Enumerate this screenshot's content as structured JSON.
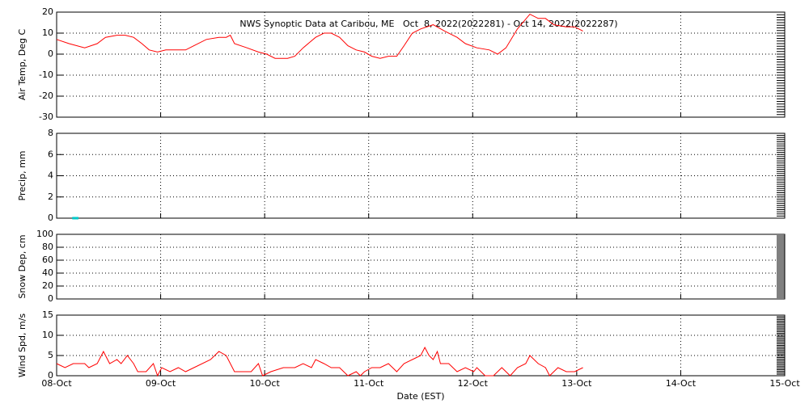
{
  "chart_data": [
    {
      "type": "line",
      "title": "NWS Synoptic Data at Caribou, ME   Oct  8, 2022(2022281) - Oct 14, 2022(2022287)",
      "y_label": "Air Temp, Deg C",
      "xlim": [
        0,
        7
      ],
      "xticks": [
        0,
        1,
        2,
        3,
        4,
        5,
        6,
        7
      ],
      "ylim": [
        -30,
        20
      ],
      "yticks": [
        -30,
        -20,
        -10,
        0,
        10,
        20
      ],
      "grid": true,
      "series": [
        {
          "color": "#ff0000",
          "x": [
            0,
            0.12,
            0.27,
            0.39,
            0.47,
            0.58,
            0.66,
            0.74,
            0.82,
            0.89,
            0.97,
            1.05,
            1.13,
            1.24,
            1.32,
            1.44,
            1.56,
            1.63,
            1.67,
            1.71,
            1.83,
            1.94,
            2.02,
            2.1,
            2.22,
            2.29,
            2.37,
            2.49,
            2.57,
            2.64,
            2.72,
            2.8,
            2.88,
            2.96,
            3.03,
            3.11,
            3.19,
            3.27,
            3.34,
            3.42,
            3.5,
            3.62,
            3.73,
            3.85,
            3.93,
            4.04,
            4.16,
            4.24,
            4.32,
            4.43,
            4.55,
            4.63,
            4.7,
            4.78,
            4.9,
            4.98,
            5.06
          ],
          "values": [
            7,
            5,
            3,
            5,
            8,
            9,
            9,
            8,
            5,
            2,
            1,
            2,
            2,
            2,
            4,
            7,
            8,
            8,
            9,
            5,
            3,
            1,
            0,
            -2,
            -2,
            -1,
            3,
            8,
            10,
            10,
            8,
            4,
            2,
            1,
            -1,
            -2,
            -1,
            -1,
            4,
            10,
            12,
            14,
            11,
            8,
            5,
            3,
            2,
            0,
            3,
            12,
            19,
            17,
            17,
            14,
            13,
            13,
            11
          ]
        }
      ]
    },
    {
      "type": "line",
      "y_label": "Precip, mm",
      "xlim": [
        0,
        7
      ],
      "xticks": [
        0,
        1,
        2,
        3,
        4,
        5,
        6,
        7
      ],
      "ylim": [
        0,
        8
      ],
      "yticks": [
        0,
        2,
        4,
        6,
        8
      ],
      "grid": true,
      "series": [
        {
          "color": "#00c8c8",
          "x": [
            0.15,
            0.21
          ],
          "values": [
            0,
            0
          ]
        }
      ]
    },
    {
      "type": "line",
      "y_label": "Snow Dep, cm",
      "xlim": [
        0,
        7
      ],
      "xticks": [
        0,
        1,
        2,
        3,
        4,
        5,
        6,
        7
      ],
      "ylim": [
        0,
        100
      ],
      "yticks": [
        0,
        20,
        40,
        60,
        80,
        100
      ],
      "grid": true,
      "series": []
    },
    {
      "type": "line",
      "y_label": "Wind Spd, m/s",
      "x_label": "Date (EST)",
      "xlim": [
        0,
        7
      ],
      "xticks": [
        {
          "value": 0,
          "label": "08-Oct"
        },
        {
          "value": 1,
          "label": "09-Oct"
        },
        {
          "value": 2,
          "label": "10-Oct"
        },
        {
          "value": 3,
          "label": "11-Oct"
        },
        {
          "value": 4,
          "label": "12-Oct"
        },
        {
          "value": 5,
          "label": "13-Oct"
        },
        {
          "value": 6,
          "label": "14-Oct"
        },
        {
          "value": 7,
          "label": "15-Oct"
        }
      ],
      "ylim": [
        0,
        15
      ],
      "yticks": [
        0,
        5,
        10,
        15
      ],
      "grid": true,
      "series": [
        {
          "color": "#ff0000",
          "x": [
            0,
            0.08,
            0.16,
            0.27,
            0.31,
            0.39,
            0.45,
            0.51,
            0.58,
            0.62,
            0.68,
            0.74,
            0.78,
            0.86,
            0.93,
            0.97,
            1.01,
            1.09,
            1.17,
            1.24,
            1.32,
            1.48,
            1.56,
            1.63,
            1.71,
            1.87,
            1.94,
            1.98,
            2.06,
            2.18,
            2.29,
            2.37,
            2.45,
            2.49,
            2.57,
            2.64,
            2.72,
            2.8,
            2.88,
            2.92,
            2.96,
            3.03,
            3.11,
            3.19,
            3.27,
            3.34,
            3.42,
            3.5,
            3.54,
            3.58,
            3.62,
            3.66,
            3.69,
            3.77,
            3.85,
            3.93,
            4.01,
            4.04,
            4.12,
            4.2,
            4.28,
            4.36,
            4.43,
            4.51,
            4.55,
            4.63,
            4.7,
            4.74,
            4.82,
            4.9,
            4.98,
            5.06
          ],
          "values": [
            3,
            2,
            3,
            3,
            2,
            3,
            6,
            3,
            4,
            3,
            5,
            3,
            1,
            1,
            3,
            0,
            2,
            1,
            2,
            1,
            2,
            4,
            6,
            5,
            1,
            1,
            3,
            0,
            1,
            2,
            2,
            3,
            2,
            4,
            3,
            2,
            2,
            0,
            1,
            0,
            1,
            2,
            2,
            3,
            1,
            3,
            4,
            5,
            7,
            5,
            4,
            6,
            3,
            3,
            1,
            2,
            1,
            2,
            0,
            0,
            2,
            0,
            2,
            3,
            5,
            3,
            2,
            0,
            2,
            1,
            1,
            2
          ]
        }
      ]
    }
  ]
}
